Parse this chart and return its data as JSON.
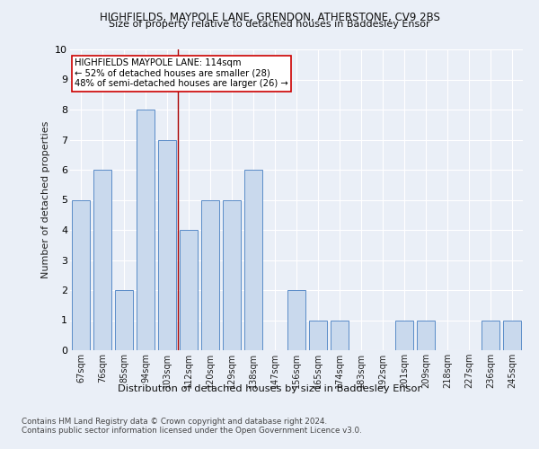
{
  "title1": "HIGHFIELDS, MAYPOLE LANE, GRENDON, ATHERSTONE, CV9 2BS",
  "title2": "Size of property relative to detached houses in Baddesley Ensor",
  "xlabel": "Distribution of detached houses by size in Baddesley Ensor",
  "ylabel": "Number of detached properties",
  "categories": [
    "67sqm",
    "76sqm",
    "85sqm",
    "94sqm",
    "103sqm",
    "112sqm",
    "120sqm",
    "129sqm",
    "138sqm",
    "147sqm",
    "156sqm",
    "165sqm",
    "174sqm",
    "183sqm",
    "192sqm",
    "201sqm",
    "209sqm",
    "218sqm",
    "227sqm",
    "236sqm",
    "245sqm"
  ],
  "values": [
    5,
    6,
    2,
    8,
    7,
    4,
    5,
    5,
    6,
    0,
    2,
    1,
    1,
    0,
    0,
    1,
    1,
    0,
    0,
    1,
    1
  ],
  "bar_color": "#c9d9ed",
  "bar_edge_color": "#5b8dc8",
  "reference_line_color": "#aa0000",
  "annotation_text": "HIGHFIELDS MAYPOLE LANE: 114sqm\n← 52% of detached houses are smaller (28)\n48% of semi-detached houses are larger (26) →",
  "annotation_box_color": "#ffffff",
  "annotation_box_edge": "#cc0000",
  "ylim": [
    0,
    10
  ],
  "footnote1": "Contains HM Land Registry data © Crown copyright and database right 2024.",
  "footnote2": "Contains public sector information licensed under the Open Government Licence v3.0.",
  "background_color": "#eaeff7",
  "plot_bg_color": "#eaeff7"
}
